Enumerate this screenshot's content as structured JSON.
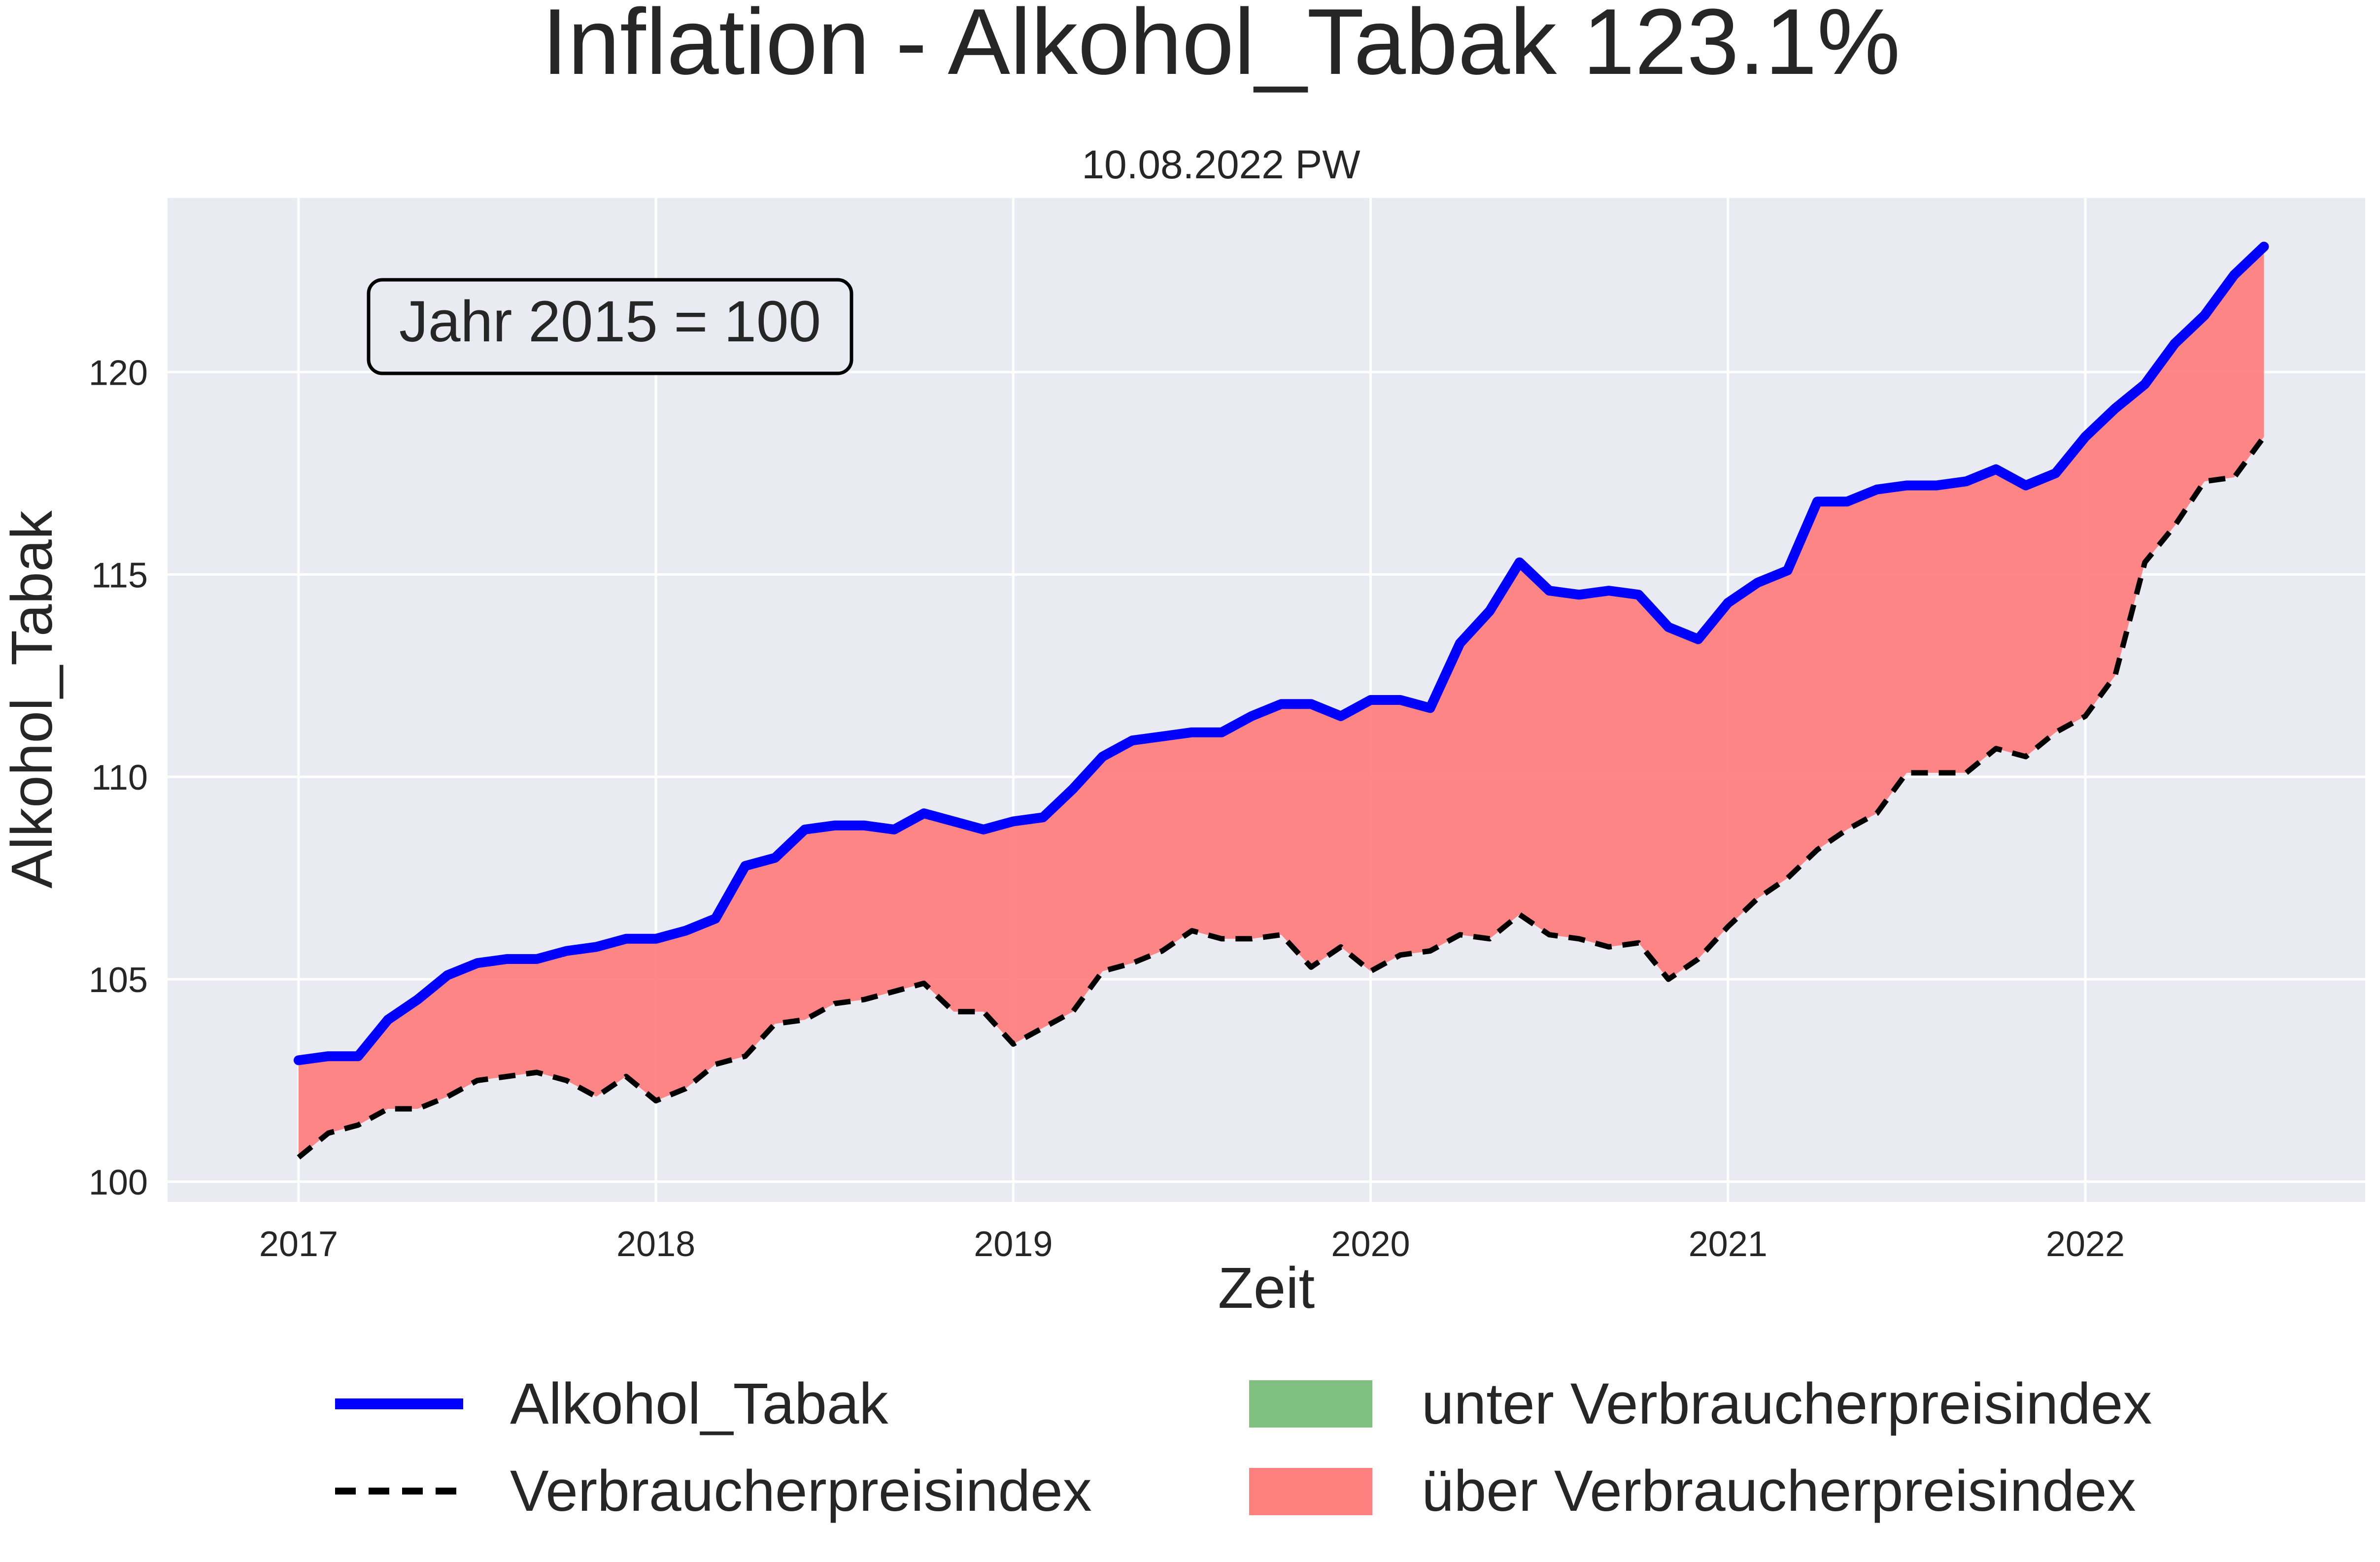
{
  "chart_data": {
    "type": "line",
    "title": "Inflation - Alkohol_Tabak 123.1%",
    "subtitle": "10.08.2022 PW",
    "xlabel": "Zeit",
    "ylabel": "Alkohol_Tabak",
    "annotation": "Jahr 2015 = 100",
    "xlim": [
      "2016-09",
      "2022-10"
    ],
    "ylim": [
      99.5,
      124.3
    ],
    "grid": true,
    "legend_placement": "bottom",
    "x_tick_labels": [
      "2017",
      "2018",
      "2019",
      "2020",
      "2021",
      "2022"
    ],
    "y_tick_labels": [
      "100",
      "105",
      "110",
      "115",
      "120"
    ],
    "y_ticks": [
      100,
      105,
      110,
      115,
      120
    ],
    "x": [
      "2017-01",
      "2017-02",
      "2017-03",
      "2017-04",
      "2017-05",
      "2017-06",
      "2017-07",
      "2017-08",
      "2017-09",
      "2017-10",
      "2017-11",
      "2017-12",
      "2018-01",
      "2018-02",
      "2018-03",
      "2018-04",
      "2018-05",
      "2018-06",
      "2018-07",
      "2018-08",
      "2018-09",
      "2018-10",
      "2018-11",
      "2018-12",
      "2019-01",
      "2019-02",
      "2019-03",
      "2019-04",
      "2019-05",
      "2019-06",
      "2019-07",
      "2019-08",
      "2019-09",
      "2019-10",
      "2019-11",
      "2019-12",
      "2020-01",
      "2020-02",
      "2020-03",
      "2020-04",
      "2020-05",
      "2020-06",
      "2020-07",
      "2020-08",
      "2020-09",
      "2020-10",
      "2020-11",
      "2020-12",
      "2021-01",
      "2021-02",
      "2021-03",
      "2021-04",
      "2021-05",
      "2021-06",
      "2021-07",
      "2021-08",
      "2021-09",
      "2021-10",
      "2021-11",
      "2021-12",
      "2022-01",
      "2022-02",
      "2022-03",
      "2022-04",
      "2022-05",
      "2022-06",
      "2022-07"
    ],
    "series": [
      {
        "name": "Alkohol_Tabak",
        "color": "#0000ff",
        "style": "solid",
        "values": [
          103.0,
          103.1,
          103.1,
          104.0,
          104.5,
          105.1,
          105.4,
          105.5,
          105.5,
          105.7,
          105.8,
          106.0,
          106.0,
          106.2,
          106.5,
          107.8,
          108.0,
          108.7,
          108.8,
          108.8,
          108.7,
          109.1,
          108.9,
          108.7,
          108.9,
          109.0,
          109.7,
          110.5,
          110.9,
          111.0,
          111.1,
          111.1,
          111.5,
          111.8,
          111.8,
          111.5,
          111.9,
          111.9,
          111.7,
          113.3,
          114.1,
          115.3,
          114.6,
          114.5,
          114.6,
          114.5,
          113.7,
          113.4,
          114.3,
          114.8,
          115.1,
          116.8,
          116.8,
          117.1,
          117.2,
          117.2,
          117.3,
          117.6,
          117.2,
          117.5,
          118.4,
          119.1,
          119.7,
          120.7,
          121.4,
          122.4,
          123.1
        ]
      },
      {
        "name": "Verbraucherpreisindex",
        "color": "#000000",
        "style": "dashed",
        "values": [
          100.6,
          101.2,
          101.4,
          101.8,
          101.8,
          102.1,
          102.5,
          102.6,
          102.7,
          102.5,
          102.1,
          102.6,
          102.0,
          102.3,
          102.9,
          103.1,
          103.9,
          104.0,
          104.4,
          104.5,
          104.7,
          104.9,
          104.2,
          104.2,
          103.4,
          103.8,
          104.2,
          105.2,
          105.4,
          105.7,
          106.2,
          106.0,
          106.0,
          106.1,
          105.3,
          105.8,
          105.2,
          105.6,
          105.7,
          106.1,
          106.0,
          106.6,
          106.1,
          106.0,
          105.8,
          105.9,
          105.0,
          105.5,
          106.3,
          107.0,
          107.5,
          108.2,
          108.7,
          109.1,
          110.1,
          110.1,
          110.1,
          110.7,
          110.5,
          111.1,
          111.5,
          112.5,
          115.3,
          116.2,
          117.3,
          117.4,
          118.4
        ]
      }
    ],
    "fill_legend": [
      {
        "name": "unter Verbraucherpreisindex",
        "color": "#7fbf7f"
      },
      {
        "name": "über Verbraucherpreisindex",
        "color": "#ff7f7f"
      }
    ]
  }
}
